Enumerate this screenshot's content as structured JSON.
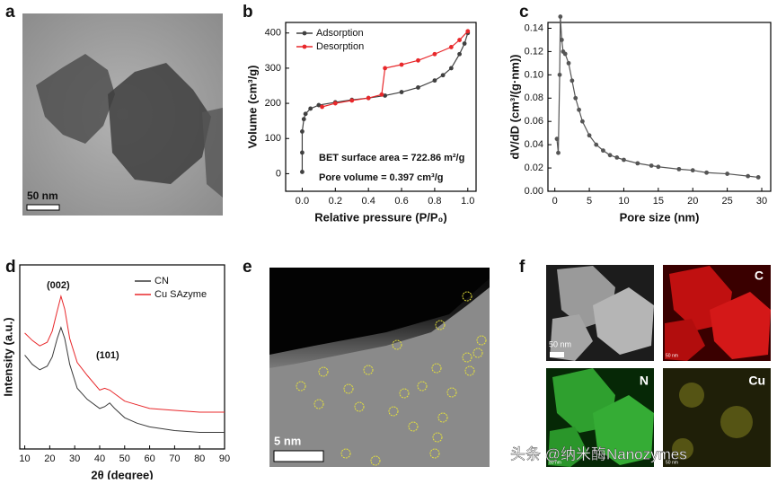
{
  "panel_labels": [
    "a",
    "b",
    "c",
    "d",
    "e",
    "f"
  ],
  "image_a": {
    "scale_bar": "50 nm"
  },
  "image_e": {
    "scale_bar": "5 nm"
  },
  "image_f": {
    "scale_bar": "50 nm",
    "maps": [
      "C",
      "N",
      "Cu"
    ]
  },
  "watermark": "头条 @纳米酶Nanozymes",
  "chart_data": [
    {
      "type": "line",
      "markers": true,
      "legend": "upper left",
      "xlabel": "Relative pressure (P/P₀)",
      "ylabel": "Volume (cm³/g)",
      "annotations": [
        "BET surface area = 722.86 m²/g",
        "Pore volume = 0.397 cm³/g"
      ],
      "xlim": [
        -0.1,
        1.05
      ],
      "ylim": [
        -50,
        430
      ],
      "xticks": [
        {
          "value": 0,
          "label": "0.0"
        },
        {
          "value": 0.2,
          "label": "0.2"
        },
        {
          "value": 0.4,
          "label": "0.4"
        },
        {
          "value": 0.6,
          "label": "0.6"
        },
        {
          "value": 0.8,
          "label": "0.8"
        },
        {
          "value": 1,
          "label": "1.0"
        }
      ],
      "yticks": [
        0,
        100,
        200,
        300,
        400
      ],
      "series": [
        {
          "name": "Adsorption",
          "color": "#404040",
          "x": [
            0,
            0,
            0,
            0.01,
            0.02,
            0.05,
            0.1,
            0.2,
            0.3,
            0.4,
            0.5,
            0.6,
            0.7,
            0.8,
            0.85,
            0.9,
            0.95,
            0.98,
            1
          ],
          "values": [
            5,
            60,
            120,
            155,
            170,
            185,
            195,
            203,
            210,
            215,
            222,
            232,
            245,
            265,
            280,
            300,
            340,
            370,
            400
          ]
        },
        {
          "name": "Desorption",
          "color": "#e8282b",
          "x": [
            0.12,
            0.2,
            0.3,
            0.4,
            0.48,
            0.5,
            0.6,
            0.7,
            0.8,
            0.9,
            0.95,
            1
          ],
          "values": [
            190,
            200,
            208,
            215,
            225,
            300,
            310,
            322,
            340,
            360,
            380,
            405
          ]
        }
      ]
    },
    {
      "type": "line",
      "markers": true,
      "xlabel": "Pore size (nm)",
      "ylabel": "dV/dD (cm³/(g·nm))",
      "xlim": [
        -1,
        31.3
      ],
      "ylim": [
        0,
        0.145
      ],
      "xticks": [
        0,
        5,
        10,
        15,
        20,
        25,
        30
      ],
      "yticks": [
        {
          "value": 0,
          "label": "0.00"
        },
        {
          "value": 0.02,
          "label": "0.02"
        },
        {
          "value": 0.04,
          "label": "0.04"
        },
        {
          "value": 0.06,
          "label": "0.06"
        },
        {
          "value": 0.08,
          "label": "0.08"
        },
        {
          "value": 0.1,
          "label": "0.10"
        },
        {
          "value": 0.12,
          "label": "0.12"
        },
        {
          "value": 0.14,
          "label": "0.14"
        }
      ],
      "series": [
        {
          "color": "#555555",
          "x": [
            0.3,
            0.5,
            0.7,
            0.8,
            1,
            1.2,
            1.5,
            2,
            2.5,
            3,
            3.5,
            4,
            5,
            6,
            7,
            8,
            9,
            10,
            12,
            14,
            15,
            18,
            20,
            22,
            25,
            28,
            29.5
          ],
          "values": [
            0.045,
            0.033,
            0.1,
            0.15,
            0.13,
            0.12,
            0.118,
            0.11,
            0.095,
            0.08,
            0.07,
            0.06,
            0.048,
            0.04,
            0.035,
            0.031,
            0.029,
            0.027,
            0.024,
            0.022,
            0.021,
            0.019,
            0.018,
            0.016,
            0.015,
            0.013,
            0.012
          ]
        }
      ]
    },
    {
      "type": "line",
      "markers": false,
      "legend": "upper right",
      "xlabel": "2θ (degree)",
      "ylabel": "Intensity (a.u.)",
      "annotations": [
        "(002)",
        "(101)"
      ],
      "xlim": [
        8,
        90
      ],
      "ylim": [
        0,
        100
      ],
      "xticks": [
        10,
        20,
        30,
        40,
        50,
        60,
        70,
        80,
        90
      ],
      "series": [
        {
          "name": "CN",
          "color": "#3a3a3a",
          "x": [
            10,
            13,
            16,
            19,
            21,
            23,
            24.5,
            26,
            28,
            31,
            35,
            40,
            42,
            44,
            46,
            50,
            55,
            60,
            70,
            80,
            90
          ],
          "values": [
            51,
            46,
            43,
            45,
            50,
            60,
            66,
            60,
            46,
            33,
            27,
            22,
            23,
            25,
            22,
            17,
            14,
            12,
            10,
            9,
            9
          ]
        },
        {
          "name": "Cu SAzyme",
          "color": "#e8282b",
          "x": [
            10,
            13,
            16,
            19,
            21,
            23,
            24.5,
            26,
            28,
            31,
            35,
            40,
            42,
            44,
            46,
            50,
            55,
            60,
            70,
            80,
            90
          ],
          "values": [
            63,
            59,
            56,
            58,
            64,
            75,
            83,
            76,
            60,
            47,
            40,
            32,
            33,
            32,
            30,
            26,
            24,
            22,
            21,
            20,
            20
          ]
        }
      ]
    }
  ]
}
